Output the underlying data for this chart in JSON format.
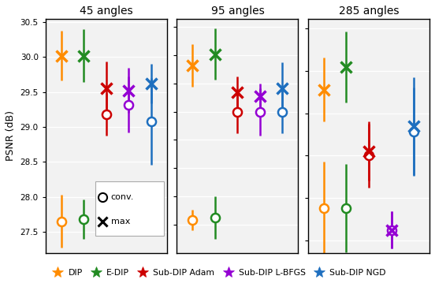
{
  "panels": [
    {
      "title": "45 angles",
      "ylim": [
        27.2,
        30.55
      ],
      "yticks": [
        27.5,
        28.0,
        28.5,
        29.0,
        29.5,
        30.0,
        30.5
      ],
      "methods": {
        "DIP": {
          "conv_mean": 27.65,
          "conv_std": 0.38,
          "max_mean": 30.02,
          "max_std": 0.35
        },
        "E-DIP": {
          "conv_mean": 27.68,
          "conv_std": 0.28,
          "max_mean": 30.02,
          "max_std": 0.38
        },
        "Sub-DIP Adam": {
          "conv_mean": 29.18,
          "conv_std": 0.3,
          "max_mean": 29.55,
          "max_std": 0.38
        },
        "Sub-DIP L-BFGS": {
          "conv_mean": 29.32,
          "conv_std": 0.4,
          "max_mean": 29.52,
          "max_std": 0.32
        },
        "Sub-DIP NGD": {
          "conv_mean": 29.08,
          "conv_std": 0.62,
          "max_mean": 29.62,
          "max_std": 0.28
        }
      }
    },
    {
      "title": "95 angles",
      "ylim": [
        29.5,
        33.65
      ],
      "yticks": [
        30.0,
        30.5,
        31.0,
        31.5,
        32.0,
        32.5,
        33.0,
        33.5
      ],
      "methods": {
        "DIP": {
          "conv_mean": 30.08,
          "conv_std": 0.18,
          "max_mean": 32.82,
          "max_std": 0.38
        },
        "E-DIP": {
          "conv_mean": 30.12,
          "conv_std": 0.38,
          "max_mean": 33.02,
          "max_std": 0.45
        },
        "Sub-DIP Adam": {
          "conv_mean": 32.0,
          "conv_std": 0.38,
          "max_mean": 32.35,
          "max_std": 0.28
        },
        "Sub-DIP L-BFGS": {
          "conv_mean": 32.0,
          "conv_std": 0.42,
          "max_mean": 32.28,
          "max_std": 0.22
        },
        "Sub-DIP NGD": {
          "conv_mean": 32.0,
          "conv_std": 0.38,
          "max_mean": 32.42,
          "max_std": 0.45
        }
      }
    },
    {
      "title": "285 angles",
      "ylim": [
        34.85,
        37.62
      ],
      "yticks": [
        35.0,
        35.5,
        36.0,
        36.5,
        37.0,
        37.5
      ],
      "methods": {
        "DIP": {
          "conv_mean": 35.38,
          "conv_std": 0.55,
          "max_mean": 36.78,
          "max_std": 0.38
        },
        "E-DIP": {
          "conv_mean": 35.38,
          "conv_std": 0.52,
          "max_mean": 37.05,
          "max_std": 0.42
        },
        "Sub-DIP Adam": {
          "conv_mean": 36.0,
          "conv_std": 0.38,
          "max_mean": 36.05,
          "max_std": 0.35
        },
        "Sub-DIP L-BFGS": {
          "conv_mean": 35.12,
          "conv_std": 0.22,
          "max_mean": 35.12,
          "max_std": 0.22
        },
        "Sub-DIP NGD": {
          "conv_mean": 36.28,
          "conv_std": 0.52,
          "max_mean": 36.35,
          "max_std": 0.58
        }
      }
    }
  ],
  "colors": {
    "DIP": "#FF8C00",
    "E-DIP": "#228B22",
    "Sub-DIP Adam": "#CC0000",
    "Sub-DIP L-BFGS": "#9400D3",
    "Sub-DIP NGD": "#1E6FBF"
  },
  "method_order": [
    "DIP",
    "E-DIP",
    "Sub-DIP Adam",
    "Sub-DIP L-BFGS",
    "Sub-DIP NGD"
  ],
  "x_positions": [
    1,
    2,
    3,
    4,
    5
  ],
  "ylabel": "PSNR (dB)"
}
